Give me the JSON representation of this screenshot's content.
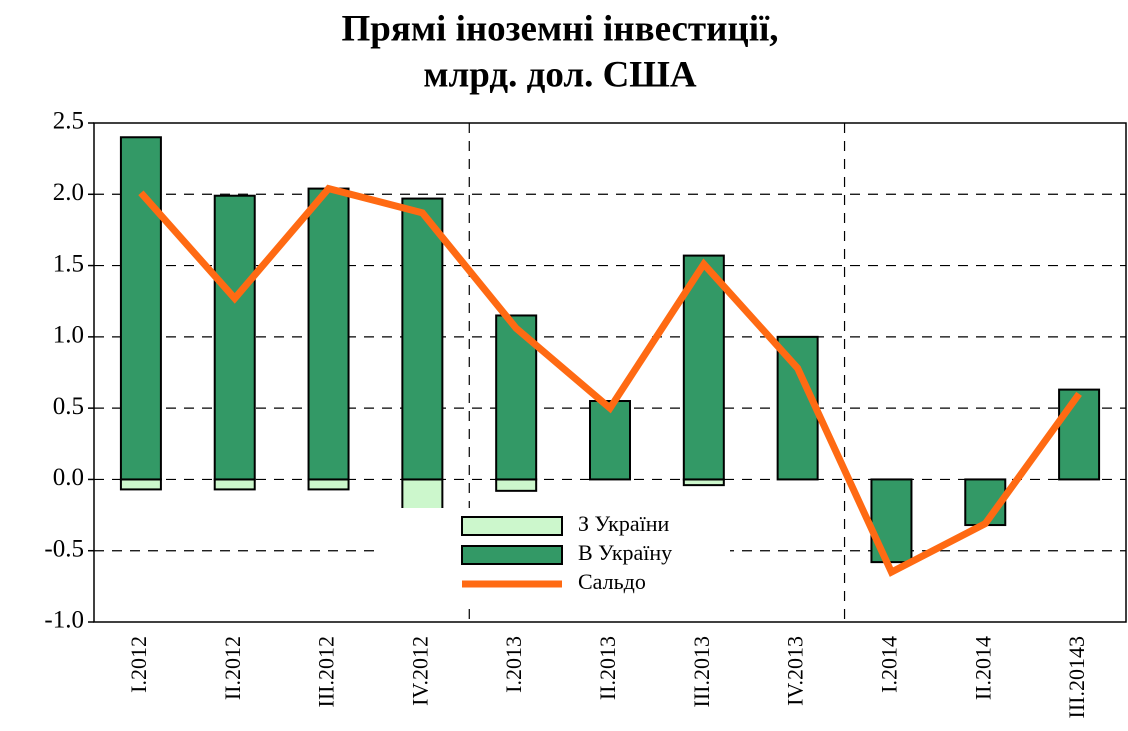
{
  "chart_data": {
    "type": "bar",
    "title": [
      "Прямі іноземні інвестиції,",
      "млрд. дол. США"
    ],
    "categories": [
      "I.2012",
      "II.2012",
      "III.2012",
      "IV.2012",
      "I.2013",
      "II.2013",
      "III.2013",
      "IV.2013",
      "I.2014",
      "II.2014",
      "III.20143"
    ],
    "series": [
      {
        "name": "З України",
        "color": "#ccf7cc",
        "values": [
          -0.07,
          -0.07,
          -0.07,
          -0.24,
          -0.08,
          0,
          -0.04,
          0,
          0,
          0,
          0
        ]
      },
      {
        "name": "В Україну",
        "color": "#339966",
        "values": [
          2.4,
          1.99,
          2.04,
          1.97,
          1.15,
          0.55,
          1.57,
          1.0,
          -0.58,
          -0.32,
          0.63
        ]
      },
      {
        "name": "Сальдо",
        "type": "line",
        "color": "#ff6a13",
        "values": [
          2.01,
          1.27,
          2.04,
          1.87,
          1.06,
          0.5,
          1.51,
          0.78,
          -0.65,
          -0.31,
          0.6
        ]
      }
    ],
    "ylim": [
      -1.0,
      2.5
    ],
    "yticks": [
      {
        "value": -1,
        "label": "-1.0"
      },
      -0.5,
      {
        "value": 0,
        "label": "0.0"
      },
      0.5,
      {
        "value": 1,
        "label": "1.0"
      },
      1.5,
      {
        "value": 2,
        "label": "2.0"
      },
      2.5
    ],
    "grid": true,
    "legend": "bottom-center"
  }
}
